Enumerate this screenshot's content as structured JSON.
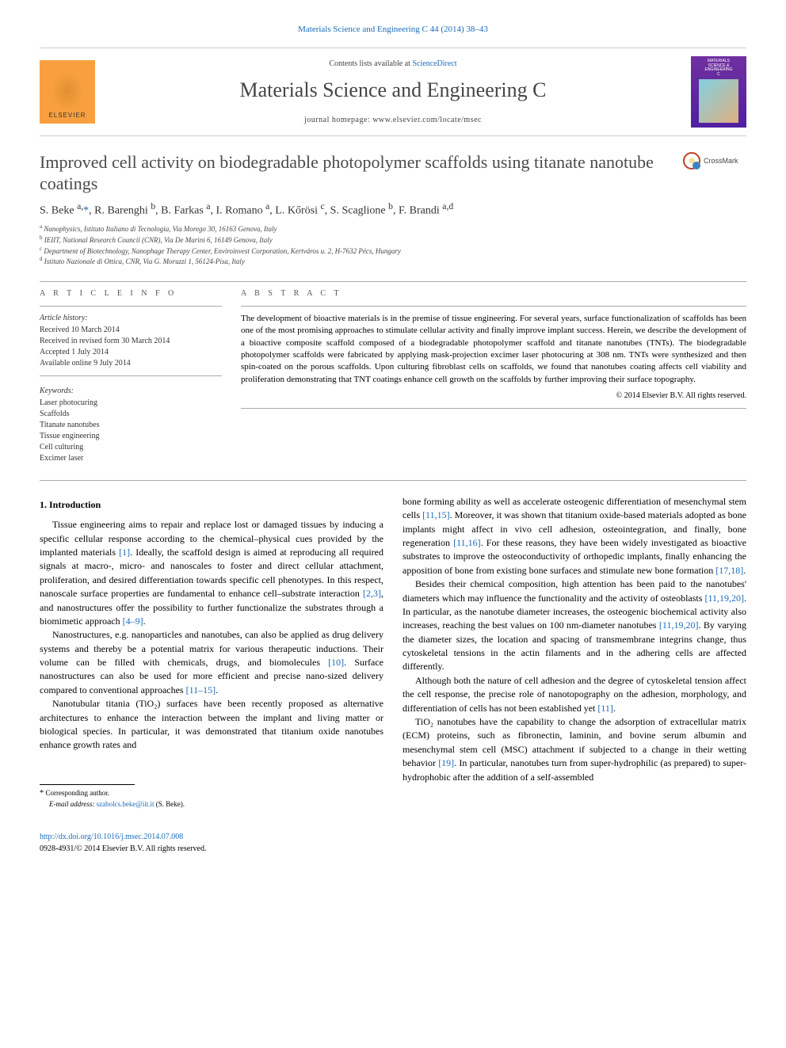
{
  "top_link": "Materials Science and Engineering C 44 (2014) 38–43",
  "header": {
    "contents_avail_prefix": "Contents lists available at ",
    "contents_avail_link": "ScienceDirect",
    "journal_name": "Materials Science and Engineering C",
    "homepage_label": "journal homepage: www.elsevier.com/locate/msec",
    "publisher_brand": "ELSEVIER",
    "cover_line1": "MATERIALS",
    "cover_line2": "SCIENCE &",
    "cover_line3": "ENGINEERING",
    "cover_line4": "C"
  },
  "crossmark": {
    "label": "CrossMark"
  },
  "article": {
    "title": "Improved cell activity on biodegradable photopolymer scaffolds using titanate nanotube coatings",
    "authors_html": "S. Beke <sup>a,</sup><span class='star'>*</span>, R. Barenghi <sup>b</sup>, B. Farkas <sup>a</sup>, I. Romano <sup>a</sup>, L. Kőrösi <sup>c</sup>, S. Scaglione <sup>b</sup>, F. Brandi <sup>a,d</sup>",
    "affiliations": [
      {
        "sup": "a",
        "text": "Nanophysics, Istituto Italiano di Tecnologia, Via Morego 30, 16163 Genova, Italy"
      },
      {
        "sup": "b",
        "text": "IEIIT, National Research Council (CNR), Via De Marini 6, 16149 Genova, Italy"
      },
      {
        "sup": "c",
        "text": "Department of Biotechnology, Nanophage Therapy Center, Enviroinvest Corporation, Kertváros u. 2, H-7632 Pécs, Hungary"
      },
      {
        "sup": "d",
        "text": "Istituto Nazionale di Ottica, CNR, Via G. Moruzzi 1, 56124-Pisa, Italy"
      }
    ]
  },
  "info": {
    "section_label": "A R T I C L E  I N F O",
    "history_label": "Article history:",
    "received": "Received 10 March 2014",
    "revised": "Received in revised form 30 March 2014",
    "accepted": "Accepted 1 July 2014",
    "available": "Available online 9 July 2014",
    "keywords_label": "Keywords:",
    "keywords": [
      "Laser photocuring",
      "Scaffolds",
      "Titanate nanotubes",
      "Tissue engineering",
      "Cell culturing",
      "Excimer laser"
    ]
  },
  "abstract": {
    "section_label": "A B S T R A C T",
    "text": "The development of bioactive materials is in the premise of tissue engineering. For several years, surface functionalization of scaffolds has been one of the most promising approaches to stimulate cellular activity and finally improve implant success. Herein, we describe the development of a bioactive composite scaffold composed of a biodegradable photopolymer scaffold and titanate nanotubes (TNTs). The biodegradable photopolymer scaffolds were fabricated by applying mask-projection excimer laser photocuring at 308 nm. TNTs were synthesized and then spin-coated on the porous scaffolds. Upon culturing fibroblast cells on scaffolds, we found that nanotubes coating affects cell viability and proliferation demonstrating that TNT coatings enhance cell growth on the scaffolds by further improving their surface topography.",
    "copyright": "© 2014 Elsevier B.V. All rights reserved."
  },
  "body": {
    "intro_heading": "1. Introduction",
    "p1_pre": "Tissue engineering aims to repair and replace lost or damaged tissues by inducing a specific cellular response according to the chemical–physical cues provided by the implanted materials ",
    "p1_ref1": "[1]",
    "p1_mid": ". Ideally, the scaffold design is aimed at reproducing all required signals at macro-, micro- and nanoscales to foster and direct cellular attachment, proliferation, and desired differentiation towards specific cell phenotypes. In this respect, nanoscale surface properties are fundamental to enhance cell–substrate interaction ",
    "p1_ref2": "[2,3]",
    "p1_mid2": ", and nanostructures offer the possibility to further functionalize the substrates through a biomimetic approach ",
    "p1_ref3": "[4–9]",
    "p1_post": ".",
    "p2_pre": "Nanostructures, e.g. nanoparticles and nanotubes, can also be applied as drug delivery systems and thereby be a potential matrix for various therapeutic inductions. Their volume can be filled with chemicals, drugs, and biomolecules ",
    "p2_ref1": "[10]",
    "p2_mid": ". Surface nanostructures can also be used for more efficient and precise nano-sized delivery compared to conventional approaches ",
    "p2_ref2": "[11–15]",
    "p2_post": ".",
    "p3_pre": "Nanotubular titania (TiO₂) surfaces have been recently proposed as alternative architectures to enhance the interaction between the implant and living matter or biological species. In particular, it was demonstrated that titanium oxide nanotubes enhance growth rates and ",
    "p4_pre": "bone forming ability as well as accelerate osteogenic differentiation of mesenchymal stem cells ",
    "p4_ref1": "[11,15]",
    "p4_mid": ". Moreover, it was shown that titanium oxide-based materials adopted as bone implants might affect in vivo cell adhesion, osteointegration, and finally, bone regeneration ",
    "p4_ref2": "[11,16]",
    "p4_mid2": ". For these reasons, they have been widely investigated as bioactive substrates to improve the osteoconductivity of orthopedic implants, finally enhancing the apposition of bone from existing bone surfaces and stimulate new bone formation ",
    "p4_ref3": "[17,18]",
    "p4_post": ".",
    "p5_pre": "Besides their chemical composition, high attention has been paid to the nanotubes' diameters which may influence the functionality and the activity of osteoblasts ",
    "p5_ref1": "[11,19,20]",
    "p5_mid": ". In particular, as the nanotube diameter increases, the osteogenic biochemical activity also increases, reaching the best values on 100 nm-diameter nanotubes ",
    "p5_ref2": "[11,19,20]",
    "p5_post": ". By varying the diameter sizes, the location and spacing of transmembrane integrins change, thus cytoskeletal tensions in the actin filaments and in the adhering cells are affected differently.",
    "p6_pre": "Although both the nature of cell adhesion and the degree of cytoskeletal tension affect the cell response, the precise role of nanotopography on the adhesion, morphology, and differentiation of cells has not been established yet ",
    "p6_ref1": "[11]",
    "p6_post": ".",
    "p7_pre": "TiO₂ nanotubes have the capability to change the adsorption of extracellular matrix (ECM) proteins, such as fibronectin, laminin, and bovine serum albumin and mesenchymal stem cell (MSC) attachment if subjected to a change in their wetting behavior ",
    "p7_ref1": "[19]",
    "p7_post": ". In particular, nanotubes turn from super-hydrophilic (as prepared) to super-hydrophobic after the addition of a self-assembled"
  },
  "corresponding": {
    "label": "* Corresponding author.",
    "email_label": "E-mail address: ",
    "email": "szabolcs.beke@iit.it",
    "name_suffix": " (S. Beke)."
  },
  "footer": {
    "doi": "http://dx.doi.org/10.1016/j.msec.2014.07.008",
    "issn_copyright": "0928-4931/© 2014 Elsevier B.V. All rights reserved."
  }
}
